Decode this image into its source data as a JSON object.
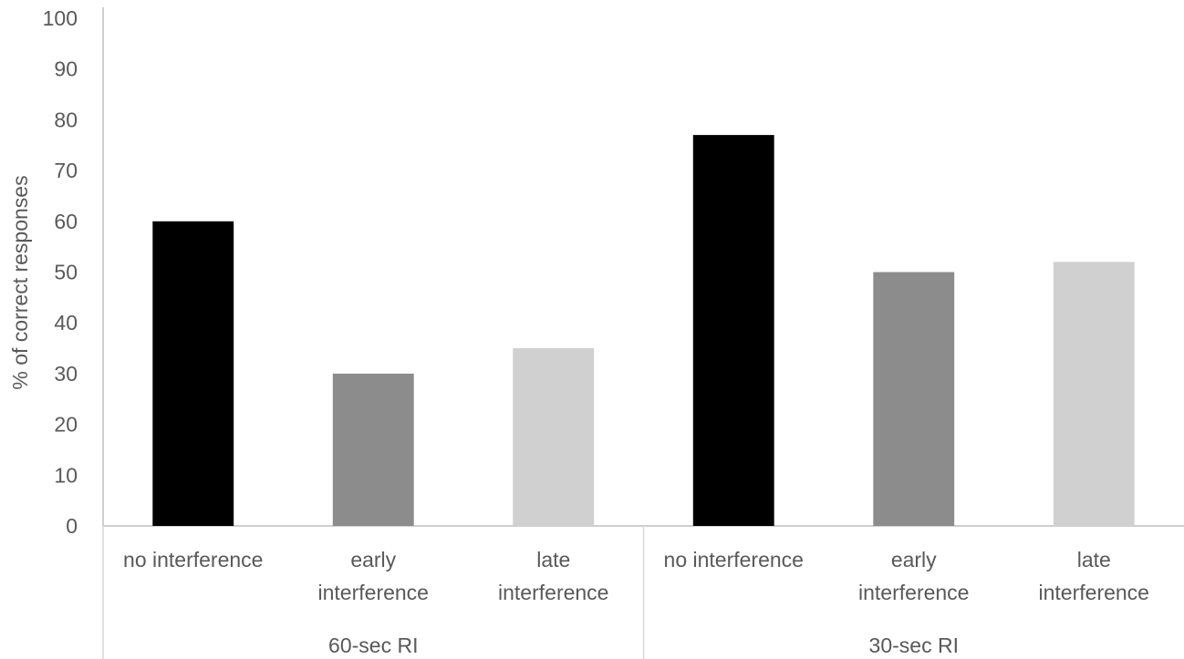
{
  "chart_data": {
    "type": "bar",
    "ylabel": "% of correct responses",
    "xlabel": "",
    "ylim": [
      0,
      100
    ],
    "y_ticks": [
      "0",
      "10",
      "20",
      "30",
      "40",
      "50",
      "60",
      "70",
      "80",
      "90",
      "100"
    ],
    "grid": false,
    "legend": "none",
    "groups": [
      "60-sec RI",
      "30-sec RI"
    ],
    "categories": [
      "no interference",
      "early interference",
      "late interference",
      "no interference",
      "early interference",
      "late interference"
    ],
    "category_lines": [
      [
        "no interference"
      ],
      [
        "early",
        "interference"
      ],
      [
        "late",
        "interference"
      ],
      [
        "no interference"
      ],
      [
        "early",
        "interference"
      ],
      [
        "late",
        "interference"
      ]
    ],
    "values": [
      60,
      30,
      35,
      77,
      50,
      52
    ],
    "colors": [
      "#000000",
      "#8c8c8c",
      "#d0d0d0",
      "#000000",
      "#8c8c8c",
      "#d0d0d0"
    ]
  }
}
